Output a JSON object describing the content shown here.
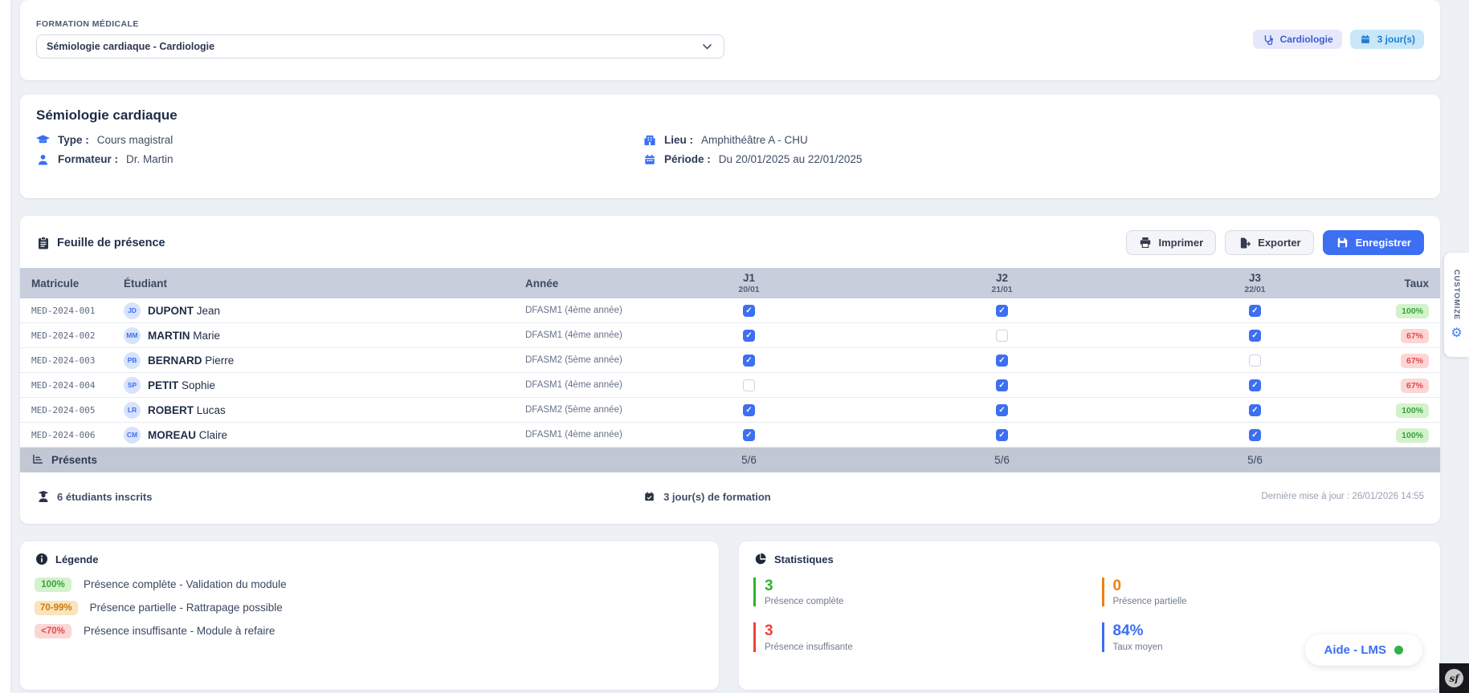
{
  "app": {
    "customize_label": "CUSTOMIZE",
    "help_button_label": "Aide - LMS",
    "profiler_label": "sf",
    "gear_glyph": "⚙",
    "check_glyph": "✓"
  },
  "formation_header": {
    "label": "FORMATION MÉDICALE",
    "selected_formation": "Sémiologie cardiaque - Cardiologie",
    "specialty_badge": "Cardiologie",
    "duration_badge": "3 jour(s)"
  },
  "course_card": {
    "title": "Sémiologie cardiaque",
    "type_label": "Type :",
    "type_value": "Cours magistral",
    "trainer_label": "Formateur :",
    "trainer_value": "Dr. Martin",
    "location_label": "Lieu :",
    "location_value": "Amphithéâtre A - CHU",
    "period_label": "Période :",
    "period_value": "Du 20/01/2025 au 22/01/2025"
  },
  "attendance": {
    "title": "Feuille de présence",
    "print_label": "Imprimer",
    "export_label": "Exporter",
    "save_label": "Enregistrer",
    "columns": {
      "matricule": "Matricule",
      "student": "Étudiant",
      "year": "Année",
      "rate": "Taux"
    },
    "days": [
      {
        "label": "J1",
        "date": "20/01"
      },
      {
        "label": "J2",
        "date": "21/01"
      },
      {
        "label": "J3",
        "date": "22/01"
      }
    ],
    "rows": [
      {
        "matricule": "MED-2024-001",
        "initials": "JD",
        "last_name": "DUPONT",
        "first_name": "Jean",
        "year": "DFASM1 (4ème année)",
        "attendance": [
          true,
          true,
          true
        ],
        "rate": "100%",
        "rate_variant": "success"
      },
      {
        "matricule": "MED-2024-002",
        "initials": "MM",
        "last_name": "MARTIN",
        "first_name": "Marie",
        "year": "DFASM1 (4ème année)",
        "attendance": [
          true,
          false,
          true
        ],
        "rate": "67%",
        "rate_variant": "danger"
      },
      {
        "matricule": "MED-2024-003",
        "initials": "PB",
        "last_name": "BERNARD",
        "first_name": "Pierre",
        "year": "DFASM2 (5ème année)",
        "attendance": [
          true,
          true,
          false
        ],
        "rate": "67%",
        "rate_variant": "danger"
      },
      {
        "matricule": "MED-2024-004",
        "initials": "SP",
        "last_name": "PETIT",
        "first_name": "Sophie",
        "year": "DFASM1 (4ème année)",
        "attendance": [
          false,
          true,
          true
        ],
        "rate": "67%",
        "rate_variant": "danger"
      },
      {
        "matricule": "MED-2024-005",
        "initials": "LR",
        "last_name": "ROBERT",
        "first_name": "Lucas",
        "year": "DFASM2 (5ème année)",
        "attendance": [
          true,
          true,
          true
        ],
        "rate": "100%",
        "rate_variant": "success"
      },
      {
        "matricule": "MED-2024-006",
        "initials": "CM",
        "last_name": "MOREAU",
        "first_name": "Claire",
        "year": "DFASM1 (4ème année)",
        "attendance": [
          true,
          true,
          true
        ],
        "rate": "100%",
        "rate_variant": "success"
      }
    ],
    "totals": {
      "label": "Présents",
      "counts": [
        "5/6",
        "5/6",
        "5/6"
      ]
    },
    "summary": {
      "students": "6 étudiants inscrits",
      "days": "3 jour(s) de formation",
      "updated": "Dernière mise à jour : 26/01/2026 14:55"
    }
  },
  "legend": {
    "title": "Légende",
    "items": [
      {
        "badge": "100%",
        "variant": "success",
        "text": "Présence complète - Validation du module"
      },
      {
        "badge": "70-99%",
        "variant": "warning",
        "text": "Présence partielle - Rattrapage possible"
      },
      {
        "badge": "<70%",
        "variant": "danger",
        "text": "Présence insuffisante - Module à refaire"
      }
    ]
  },
  "stats": {
    "title": "Statistiques",
    "items": [
      {
        "value": "3",
        "label": "Présence complète",
        "color": "#2eb52b"
      },
      {
        "value": "0",
        "label": "Présence partielle",
        "color": "#f0800f"
      },
      {
        "value": "3",
        "label": "Présence insuffisante",
        "color": "#f23f3b"
      },
      {
        "value": "84%",
        "label": "Taux moyen",
        "color": "#3b6ef6"
      }
    ]
  },
  "colors": {
    "primary": "#3d6ff2",
    "header_bg": "#c8cedb",
    "page_bg": "#edf0f4"
  }
}
